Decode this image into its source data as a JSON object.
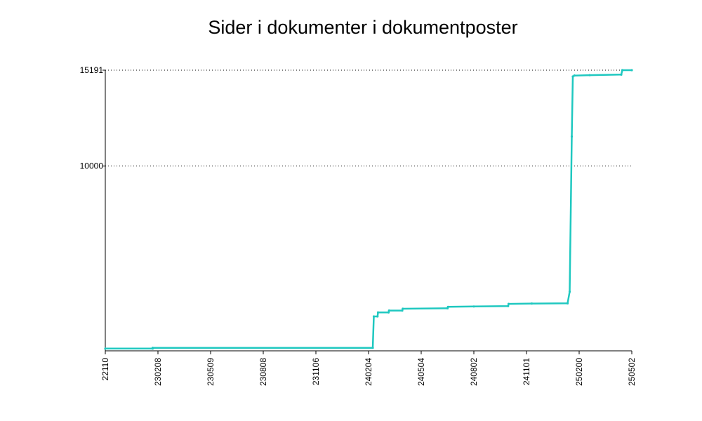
{
  "chart_data": {
    "type": "line",
    "title": "Sider i dokumenter i dokumentposter",
    "xlabel": "",
    "ylabel": "",
    "x_tick_labels": [
      "22110",
      "230208",
      "230509",
      "230808",
      "231106",
      "240204",
      "240504",
      "240802",
      "241101",
      "250200",
      "250502"
    ],
    "y_tick_labels": [
      {
        "label": "15191",
        "value": 15191
      },
      {
        "label": "10000",
        "value": 10000
      }
    ],
    "ylim": [
      0,
      15191
    ],
    "grid": "horizontal-dotted",
    "legend": "none",
    "series": [
      {
        "color": "#1fc8c0",
        "points": [
          [
            0.0,
            120
          ],
          [
            0.9,
            120
          ],
          [
            0.9,
            160
          ],
          [
            5.08,
            160
          ],
          [
            5.1,
            1860
          ],
          [
            5.17,
            1860
          ],
          [
            5.18,
            2080
          ],
          [
            5.38,
            2080
          ],
          [
            5.39,
            2180
          ],
          [
            5.64,
            2180
          ],
          [
            5.65,
            2280
          ],
          [
            6.5,
            2300
          ],
          [
            6.51,
            2380
          ],
          [
            7.0,
            2400
          ],
          [
            7.65,
            2420
          ],
          [
            7.66,
            2540
          ],
          [
            8.1,
            2560
          ],
          [
            8.78,
            2570
          ],
          [
            8.82,
            3200
          ],
          [
            8.86,
            11600
          ],
          [
            8.88,
            14850
          ],
          [
            8.91,
            14900
          ],
          [
            9.2,
            14920
          ],
          [
            9.8,
            14950
          ],
          [
            9.82,
            15191
          ],
          [
            10.0,
            15191
          ]
        ]
      }
    ]
  }
}
